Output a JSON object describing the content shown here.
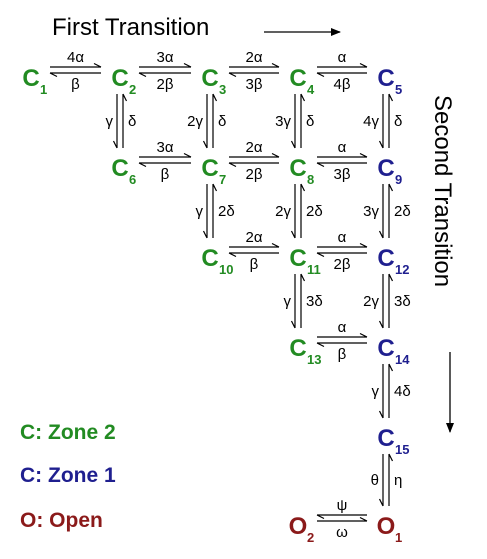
{
  "colors": {
    "zone2": "#228b22",
    "zone1": "#1f1f8f",
    "open": "#8b1a1a",
    "line": "#000000"
  },
  "headers": {
    "first_transition": "First Transition",
    "second_transition": "Second Transition"
  },
  "legend": [
    {
      "text": "C: Zone 2",
      "color": "#228b22"
    },
    {
      "text": "C: Zone 1",
      "color": "#1f1f8f"
    },
    {
      "text": "O: Open",
      "color": "#8b1a1a"
    }
  ],
  "states": [
    {
      "id": "C1",
      "letter": "C",
      "sub": "1",
      "color": "#228b22"
    },
    {
      "id": "C2",
      "letter": "C",
      "sub": "2",
      "color": "#228b22"
    },
    {
      "id": "C3",
      "letter": "C",
      "sub": "3",
      "color": "#228b22"
    },
    {
      "id": "C4",
      "letter": "C",
      "sub": "4",
      "color": "#228b22"
    },
    {
      "id": "C5",
      "letter": "C",
      "sub": "5",
      "color": "#1f1f8f"
    },
    {
      "id": "C6",
      "letter": "C",
      "sub": "6",
      "color": "#228b22"
    },
    {
      "id": "C7",
      "letter": "C",
      "sub": "7",
      "color": "#228b22"
    },
    {
      "id": "C8",
      "letter": "C",
      "sub": "8",
      "color": "#228b22"
    },
    {
      "id": "C9",
      "letter": "C",
      "sub": "9",
      "color": "#1f1f8f"
    },
    {
      "id": "C10",
      "letter": "C",
      "sub": "10",
      "color": "#228b22"
    },
    {
      "id": "C11",
      "letter": "C",
      "sub": "11",
      "color": "#228b22"
    },
    {
      "id": "C12",
      "letter": "C",
      "sub": "12",
      "color": "#1f1f8f"
    },
    {
      "id": "C13",
      "letter": "C",
      "sub": "13",
      "color": "#228b22"
    },
    {
      "id": "C14",
      "letter": "C",
      "sub": "14",
      "color": "#1f1f8f"
    },
    {
      "id": "C15",
      "letter": "C",
      "sub": "15",
      "color": "#1f1f8f"
    },
    {
      "id": "O2",
      "letter": "O",
      "sub": "2",
      "color": "#8b1a1a"
    },
    {
      "id": "O1",
      "letter": "O",
      "sub": "1",
      "color": "#8b1a1a"
    }
  ],
  "transitions": [
    {
      "from": "C1",
      "to": "C2",
      "forward": "4α",
      "backward": "β"
    },
    {
      "from": "C2",
      "to": "C3",
      "forward": "3α",
      "backward": "2β"
    },
    {
      "from": "C3",
      "to": "C4",
      "forward": "2α",
      "backward": "3β"
    },
    {
      "from": "C4",
      "to": "C5",
      "forward": "α",
      "backward": "4β"
    },
    {
      "from": "C6",
      "to": "C7",
      "forward": "3α",
      "backward": "β"
    },
    {
      "from": "C7",
      "to": "C8",
      "forward": "2α",
      "backward": "2β"
    },
    {
      "from": "C8",
      "to": "C9",
      "forward": "α",
      "backward": "3β"
    },
    {
      "from": "C10",
      "to": "C11",
      "forward": "2α",
      "backward": "β"
    },
    {
      "from": "C11",
      "to": "C12",
      "forward": "α",
      "backward": "2β"
    },
    {
      "from": "C13",
      "to": "C14",
      "forward": "α",
      "backward": "β"
    },
    {
      "from": "O1",
      "to": "O2",
      "forward": "ψ",
      "backward": "ω"
    },
    {
      "from": "C2",
      "to": "C6",
      "forward": "γ",
      "backward": "δ"
    },
    {
      "from": "C3",
      "to": "C7",
      "forward": "2γ",
      "backward": "δ"
    },
    {
      "from": "C4",
      "to": "C8",
      "forward": "3γ",
      "backward": "δ"
    },
    {
      "from": "C5",
      "to": "C9",
      "forward": "4γ",
      "backward": "δ"
    },
    {
      "from": "C7",
      "to": "C10",
      "forward": "γ",
      "backward": "2δ"
    },
    {
      "from": "C8",
      "to": "C11",
      "forward": "2γ",
      "backward": "2δ"
    },
    {
      "from": "C9",
      "to": "C12",
      "forward": "3γ",
      "backward": "2δ"
    },
    {
      "from": "C11",
      "to": "C13",
      "forward": "γ",
      "backward": "3δ"
    },
    {
      "from": "C12",
      "to": "C14",
      "forward": "2γ",
      "backward": "3δ"
    },
    {
      "from": "C14",
      "to": "C15",
      "forward": "γ",
      "backward": "4δ"
    },
    {
      "from": "C15",
      "to": "O1",
      "forward": "θ",
      "backward": "η"
    }
  ]
}
